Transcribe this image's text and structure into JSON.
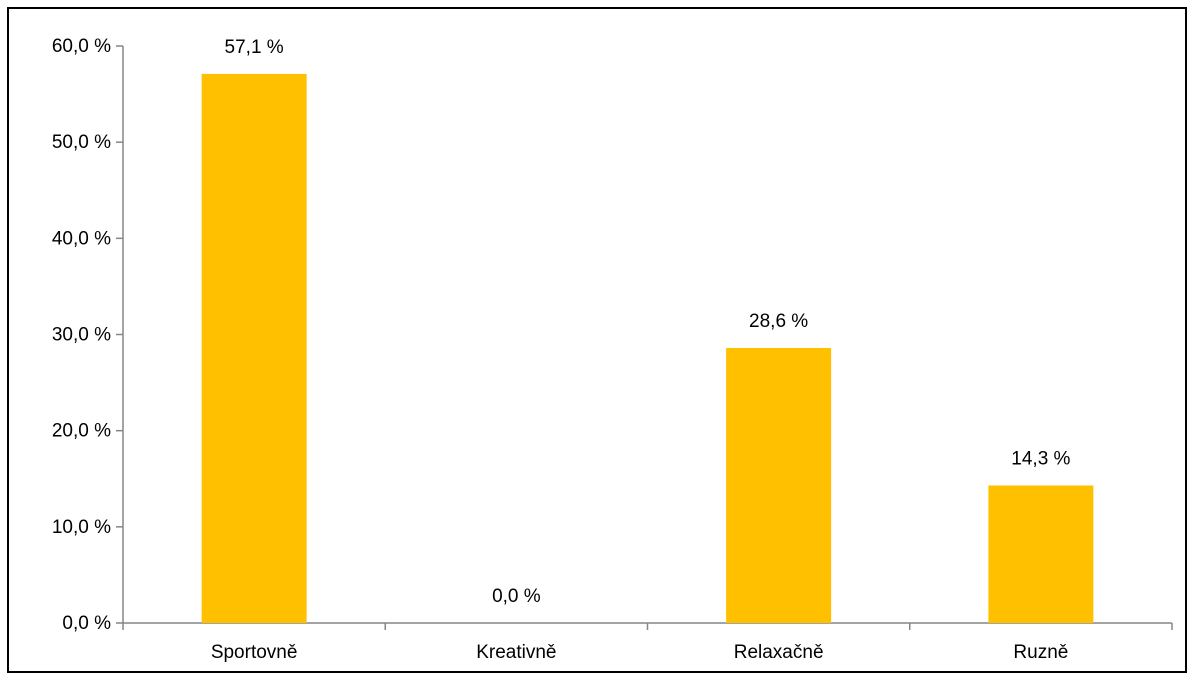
{
  "chart_data": {
    "type": "bar",
    "title": "",
    "xlabel": "",
    "ylabel": "",
    "categories": [
      "Sportovně",
      "Kreativně",
      "Relaxačně",
      "Ruzně"
    ],
    "values": [
      57.1,
      0.0,
      28.6,
      14.3
    ],
    "data_labels": [
      "57,1 %",
      "0,0 %",
      "28,6 %",
      "14,3 %"
    ],
    "ylim": [
      0,
      60
    ],
    "yticks": [
      0,
      10,
      20,
      30,
      40,
      50,
      60
    ],
    "ytick_labels": [
      "0,0 %",
      "10,0 %",
      "20,0 %",
      "30,0 %",
      "40,0 %",
      "50,0 %",
      "60,0 %"
    ],
    "grid": false,
    "legend": "none",
    "colors": {
      "bar": "#FFC000",
      "axis": "#868686",
      "text": "#000000",
      "border": "#000000"
    }
  }
}
